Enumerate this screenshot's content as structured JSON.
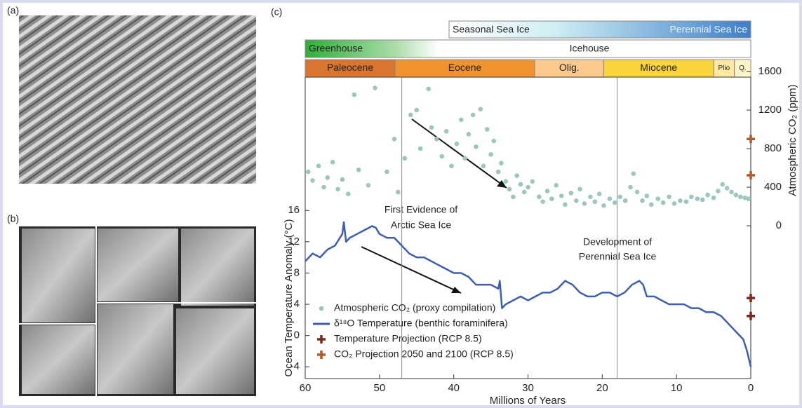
{
  "panel_labels": [
    "(a)",
    "(b)",
    "(c)"
  ],
  "chart_data": {
    "type": "line",
    "xlabel": "Millions of Years",
    "ylabel": "Ocean Temperature Anomaly (°C)",
    "y2label": "Atmospheric CO₂ (ppm)",
    "xlim": [
      60,
      0
    ],
    "xticks": [
      60,
      50,
      40,
      30,
      20,
      10,
      0
    ],
    "ylim": [
      -5.5,
      35.3
    ],
    "yticks": [
      -4,
      0,
      4,
      8,
      12,
      16
    ],
    "y2lim": [
      -1585,
      1724
    ],
    "y2ticks": [
      0,
      400,
      800,
      1200,
      1600
    ],
    "sea_ice": [
      "Seasonal Sea Ice",
      "Perennial Sea Ice"
    ],
    "climate": [
      "Greenhouse",
      "Icehouse"
    ],
    "eras": [
      {
        "label": "Paleocene",
        "start": 60,
        "end": 47.9,
        "color": "#d9752f"
      },
      {
        "label": "Eocene",
        "start": 47.9,
        "end": 29.1,
        "color": "#f0932f"
      },
      {
        "label": "Olig.",
        "start": 29.1,
        "end": 19.8,
        "color": "#fbc98c"
      },
      {
        "label": "Miocene",
        "start": 19.8,
        "end": 5.0,
        "color": "#fbd33a"
      },
      {
        "label": "Plio",
        "start": 5.0,
        "end": 2.2,
        "color": "#fde9a0"
      },
      {
        "label": "Q.",
        "start": 2.2,
        "end": 0,
        "color": "#fff6c8"
      }
    ],
    "vlines": [
      47,
      18
    ],
    "annotations": [
      {
        "lines": [
          "First Evidence of",
          "Arctic Sea Ice"
        ]
      },
      {
        "lines": [
          "Development of",
          "Perennial Sea Ice"
        ]
      }
    ],
    "series": [
      {
        "name": "Atmospheric CO₂ (proxy compilation)",
        "kind": "scatter",
        "axis": "y2",
        "color": "#9cc7bf",
        "x": [
          59.6,
          59,
          58.2,
          57.5,
          57,
          56.3,
          55.6,
          55,
          54.2,
          53.4,
          52.8,
          51.5,
          50.6,
          49,
          48,
          47.5,
          46.6,
          45.8,
          45,
          44.5,
          43.4,
          43,
          42.3,
          41.6,
          41,
          40.3,
          39.6,
          39,
          38.5,
          38,
          37.4,
          37,
          36.4,
          36,
          35.5,
          35,
          34.6,
          34,
          33.6,
          33,
          32.5,
          32,
          31.5,
          31,
          30.5,
          30,
          29.4,
          28.5,
          28,
          27.4,
          26.8,
          26.2,
          25.5,
          25,
          24.2,
          23.5,
          23,
          22.4,
          21.6,
          21,
          20.4,
          19.8,
          19,
          18.3,
          17.6,
          16.9,
          16.2,
          15.8,
          15.3,
          14.6,
          14,
          13.4,
          12.5,
          11.8,
          11,
          10.3,
          9.5,
          8.7,
          8,
          7.2,
          6.5,
          5.8,
          5,
          4.4,
          3.8,
          3.2,
          2.6,
          2,
          1.4,
          0.8,
          0.3
        ],
        "values": [
          560,
          470,
          620,
          400,
          500,
          660,
          380,
          480,
          330,
          1360,
          580,
          420,
          1430,
          560,
          900,
          350,
          700,
          1150,
          1200,
          800,
          1420,
          1020,
          900,
          720,
          980,
          620,
          850,
          1100,
          700,
          950,
          1150,
          820,
          1210,
          620,
          1000,
          740,
          880,
          560,
          650,
          460,
          380,
          300,
          520,
          430,
          350,
          400,
          460,
          300,
          250,
          360,
          280,
          420,
          310,
          220,
          340,
          260,
          380,
          230,
          300,
          250,
          330,
          210,
          280,
          240,
          300,
          260,
          400,
          540,
          350,
          260,
          310,
          220,
          280,
          240,
          300,
          230,
          260,
          250,
          300,
          280,
          270,
          320,
          290,
          360,
          430,
          390,
          350,
          320,
          300,
          290,
          280
        ]
      },
      {
        "name": "δ¹⁸O Temperature (benthic foraminifera)",
        "kind": "line",
        "color": "#3b5db5",
        "x": [
          60,
          59,
          58,
          57,
          56,
          55,
          54.8,
          54.5,
          54,
          53,
          52,
          51,
          50.5,
          50,
          49,
          48,
          47,
          46,
          45,
          44,
          43,
          42,
          41,
          40,
          39,
          38,
          37,
          36,
          35,
          34,
          33.8,
          33.5,
          33,
          32,
          31,
          30,
          29,
          28,
          27,
          26,
          25,
          24,
          23,
          22,
          21,
          20,
          19,
          18,
          17,
          16,
          15,
          14.5,
          14,
          13,
          12,
          11,
          10,
          9,
          8,
          7,
          6,
          5,
          4,
          3,
          2,
          1,
          0.5,
          0
        ],
        "values": [
          9.5,
          10.5,
          10,
          11,
          11.5,
          13,
          14.5,
          12,
          12.5,
          13,
          13.5,
          14,
          13.8,
          13,
          12.5,
          12.5,
          11.5,
          10.5,
          10,
          10,
          9.5,
          9,
          8.5,
          8,
          8,
          7.5,
          6.5,
          6.5,
          6.5,
          6,
          7,
          3.5,
          4,
          4.5,
          5,
          4.5,
          5,
          5.5,
          5.5,
          6,
          7,
          6.5,
          5.5,
          5,
          5,
          5.5,
          5.5,
          5,
          5.5,
          6.5,
          7,
          6.5,
          5,
          5,
          4.5,
          4,
          4,
          4,
          3.5,
          3.5,
          3,
          3,
          2.5,
          1.5,
          0.5,
          -0.5,
          -2,
          -4
        ]
      },
      {
        "name": "Temperature Projection (RCP 8.5)",
        "kind": "cross",
        "color": "#7a2a1a",
        "x": [
          0,
          0
        ],
        "values": [
          4.8,
          2.5
        ]
      },
      {
        "name": "CO₂ Projection 2050 and 2100 (RCP 8.5)",
        "kind": "cross",
        "axis": "y2",
        "color": "#b35a2a",
        "x": [
          0,
          0
        ],
        "values": [
          900,
          524
        ]
      }
    ]
  }
}
